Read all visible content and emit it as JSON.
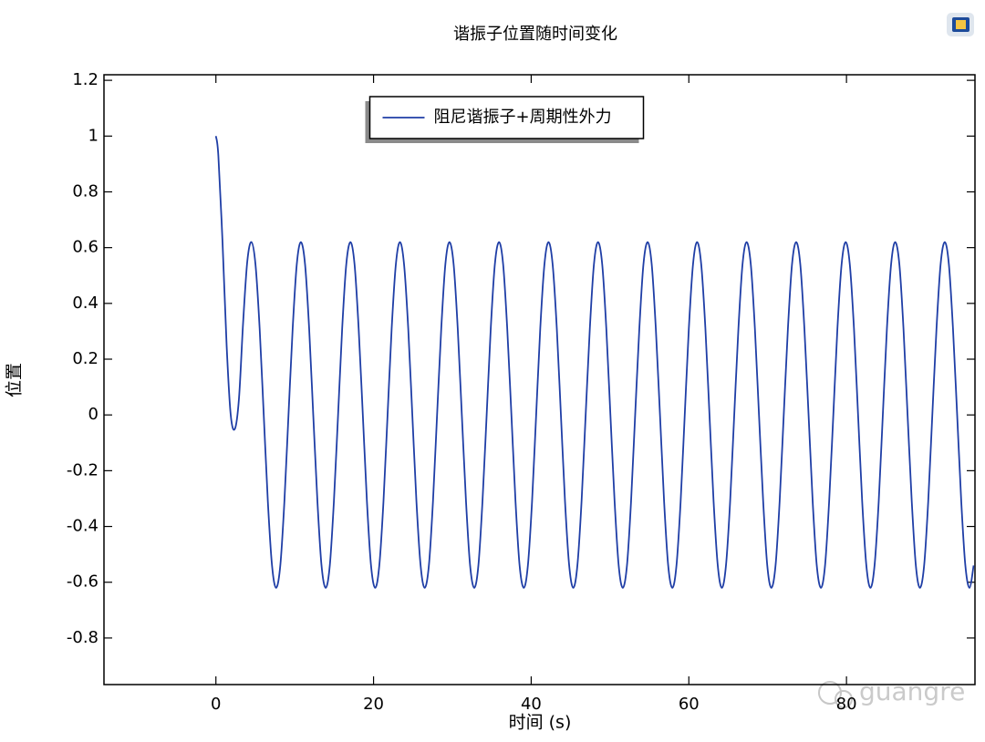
{
  "chart_data": {
    "type": "line",
    "title": "谐振子位置随时间变化",
    "x_label": "时间 (s)",
    "y_label": "位置",
    "watermark": "guangre",
    "legend_position": "top",
    "xlim": [
      -14.2,
      96.3
    ],
    "ylim": [
      -0.967,
      1.22
    ],
    "xticks": [
      0,
      20,
      40,
      60,
      80
    ],
    "yticks": [
      -0.8,
      -0.6,
      -0.4,
      -0.2,
      0,
      0.2,
      0.4,
      0.6,
      0.8,
      1,
      1.2
    ],
    "x": [
      0,
      0.31,
      0.84,
      1.36,
      1.88,
      2.41,
      2.93,
      3.45,
      3.98,
      4.5,
      5.02,
      5.55,
      6.07,
      6.59,
      7.12,
      7.64,
      8.17,
      8.69,
      9.21,
      9.74,
      10.26,
      10.78,
      11.31,
      11.83,
      12.35,
      12.88,
      13.4,
      13.93,
      14.45,
      14.97,
      15.5,
      16.02,
      16.54,
      17.07,
      17.59,
      18.11,
      18.64,
      19.16,
      19.68,
      20.21,
      20.73,
      21.26,
      21.78,
      22.3,
      22.83,
      23.35,
      23.87,
      24.4,
      24.92,
      25.44,
      25.97,
      26.49,
      27.02,
      27.54,
      28.06,
      28.59,
      29.11,
      29.63,
      30.16,
      30.68,
      31.2,
      31.73,
      32.25,
      32.78,
      33.3,
      33.82,
      34.35,
      34.87,
      35.39,
      35.92,
      36.44,
      36.96,
      37.49,
      38.01,
      38.53,
      39.06,
      39.58,
      40.11,
      40.63,
      41.15,
      41.68,
      42.2,
      42.72,
      43.25,
      43.77,
      44.29,
      44.82,
      45.34,
      45.86,
      46.39,
      46.91,
      47.44,
      47.96,
      48.48,
      49.01,
      49.53,
      50.05,
      50.58,
      51.1,
      51.62,
      52.15,
      52.67,
      53.19,
      53.72,
      54.24,
      54.77,
      55.29,
      55.81,
      56.34,
      56.86,
      57.38,
      57.91,
      58.43,
      58.96,
      59.48,
      60.0,
      60.53,
      61.05,
      61.57,
      62.1,
      62.62,
      63.14,
      63.67,
      64.19,
      64.71,
      65.24,
      65.76,
      66.29,
      66.81,
      67.33,
      67.86,
      68.38,
      68.9,
      69.43,
      69.95,
      70.47,
      71.0,
      71.52,
      72.04,
      72.57,
      73.09,
      73.62,
      74.14,
      74.66,
      75.19,
      75.71,
      76.23,
      76.76,
      77.28,
      77.8,
      78.33,
      78.85,
      79.38,
      79.9,
      80.42,
      80.95,
      81.47,
      81.99,
      82.52,
      83.04,
      83.56,
      84.09,
      84.61,
      85.13,
      85.66,
      86.18,
      86.71,
      87.23,
      87.75,
      88.28,
      88.8,
      89.32,
      89.85,
      90.37,
      90.89,
      91.42,
      91.94,
      92.47,
      92.99,
      93.51,
      94.04,
      94.56,
      95.08,
      95.61,
      96.13
    ],
    "series": [
      {
        "name": "阻尼谐振子+周期性外力",
        "color": "#1f3ea6",
        "values": [
          1,
          0.93,
          0.62,
          0.25,
          0.0,
          -0.05,
          0.06,
          0.33,
          0.55,
          0.62,
          0.54,
          0.31,
          0,
          -0.31,
          -0.54,
          -0.62,
          -0.54,
          -0.31,
          0,
          0.31,
          0.54,
          0.62,
          0.54,
          0.31,
          0,
          -0.31,
          -0.54,
          -0.62,
          -0.54,
          -0.31,
          0,
          0.31,
          0.54,
          0.62,
          0.54,
          0.31,
          0,
          -0.31,
          -0.54,
          -0.62,
          -0.54,
          -0.31,
          0,
          0.31,
          0.54,
          0.62,
          0.54,
          0.31,
          0,
          -0.31,
          -0.54,
          -0.62,
          -0.54,
          -0.31,
          0,
          0.31,
          0.54,
          0.62,
          0.54,
          0.31,
          0,
          -0.31,
          -0.54,
          -0.62,
          -0.54,
          -0.31,
          0,
          0.31,
          0.54,
          0.62,
          0.54,
          0.31,
          0,
          -0.31,
          -0.54,
          -0.62,
          -0.54,
          -0.31,
          0,
          0.31,
          0.54,
          0.62,
          0.54,
          0.31,
          0,
          -0.31,
          -0.54,
          -0.62,
          -0.54,
          -0.31,
          0,
          0.31,
          0.54,
          0.62,
          0.54,
          0.31,
          0,
          -0.31,
          -0.54,
          -0.62,
          -0.54,
          -0.31,
          0,
          0.31,
          0.54,
          0.62,
          0.54,
          0.31,
          0,
          -0.31,
          -0.54,
          -0.62,
          -0.54,
          -0.31,
          0,
          0.31,
          0.54,
          0.62,
          0.54,
          0.31,
          0,
          -0.31,
          -0.54,
          -0.62,
          -0.54,
          -0.31,
          0,
          0.31,
          0.54,
          0.62,
          0.54,
          0.31,
          0,
          -0.31,
          -0.54,
          -0.62,
          -0.54,
          -0.31,
          0,
          0.31,
          0.54,
          0.62,
          0.54,
          0.31,
          0,
          -0.31,
          -0.54,
          -0.62,
          -0.54,
          -0.31,
          0,
          0.31,
          0.54,
          0.62,
          0.54,
          0.31,
          0,
          -0.31,
          -0.54,
          -0.62,
          -0.54,
          -0.31,
          0,
          0.31,
          0.54,
          0.62,
          0.54,
          0.31,
          0,
          -0.31,
          -0.54,
          -0.62,
          -0.54,
          -0.31,
          0,
          0.31,
          0.54,
          0.62,
          0.54,
          0.31,
          0,
          -0.31,
          -0.54,
          -0.62,
          -0.54
        ]
      }
    ]
  }
}
